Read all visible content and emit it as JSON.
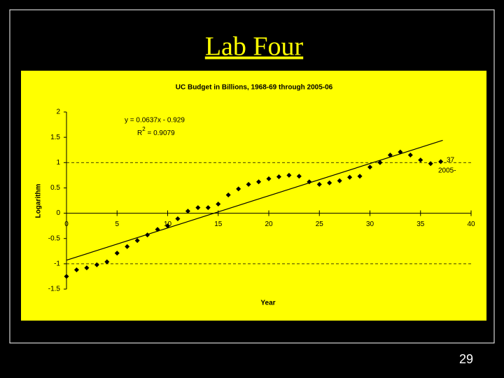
{
  "slide": {
    "title": "Lab Four",
    "page_number": "29"
  },
  "chart_data": {
    "type": "scatter",
    "title": "UC Budget in Billions, 1968-69 through 2005-06",
    "x_label": "Year",
    "y_label": "Logarithm",
    "equation": "y = 0.0637x - 0.929",
    "r2": {
      "base": "R",
      "sup": "2",
      "rest": " = 0.9079"
    },
    "annotations": [
      "37",
      "2005-"
    ],
    "x": [
      0,
      1,
      2,
      3,
      4,
      5,
      6,
      7,
      8,
      9,
      10,
      11,
      12,
      13,
      14,
      15,
      16,
      17,
      18,
      19,
      20,
      21,
      22,
      23,
      24,
      25,
      26,
      27,
      28,
      29,
      30,
      31,
      32,
      33,
      34,
      35,
      36,
      37
    ],
    "values": [
      -1.25,
      -1.12,
      -1.08,
      -1.02,
      -0.96,
      -0.79,
      -0.66,
      -0.54,
      -0.43,
      -0.32,
      -0.25,
      -0.11,
      0.04,
      0.11,
      0.11,
      0.18,
      0.36,
      0.48,
      0.57,
      0.62,
      0.68,
      0.72,
      0.75,
      0.73,
      0.62,
      0.57,
      0.6,
      0.64,
      0.71,
      0.73,
      0.91,
      1.0,
      1.15,
      1.21,
      1.15,
      1.05,
      0.98,
      1.02
    ],
    "color": "#000000",
    "trendline": {
      "x": [
        0,
        37.2
      ],
      "y": [
        -0.929,
        1.44
      ]
    },
    "dashed_lines": [
      1,
      -1
    ],
    "xlim": [
      0,
      40
    ],
    "xticks": [
      0,
      5,
      10,
      15,
      20,
      25,
      30,
      35,
      40
    ],
    "ylim": [
      -1.5,
      2
    ],
    "yticks": [
      -1.5,
      -1,
      -0.5,
      0,
      0.5,
      1,
      1.5,
      2
    ]
  }
}
